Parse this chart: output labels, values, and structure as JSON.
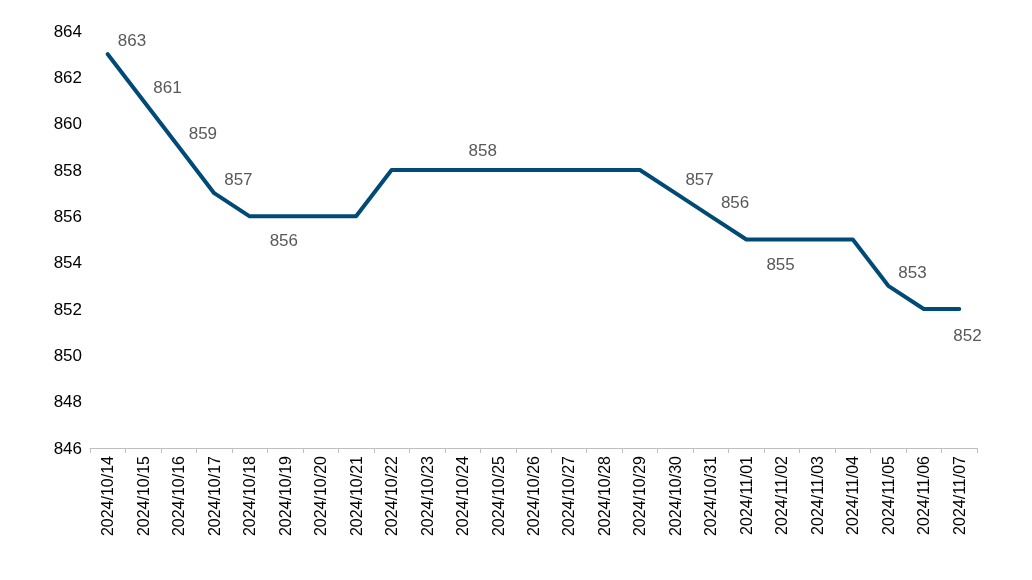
{
  "chart_data": {
    "type": "line",
    "categories": [
      "2024/10/14",
      "2024/10/15",
      "2024/10/16",
      "2024/10/17",
      "2024/10/18",
      "2024/10/19",
      "2024/10/20",
      "2024/10/21",
      "2024/10/22",
      "2024/10/23",
      "2024/10/24",
      "2024/10/25",
      "2024/10/26",
      "2024/10/27",
      "2024/10/28",
      "2024/10/29",
      "2024/10/30",
      "2024/10/31",
      "2024/11/01",
      "2024/11/02",
      "2024/11/03",
      "2024/11/04",
      "2024/11/05",
      "2024/11/06",
      "2024/11/07"
    ],
    "series": [
      {
        "color": "#004a76",
        "values": [
          863,
          861,
          859,
          857,
          856,
          856,
          856,
          856,
          858,
          858,
          858,
          858,
          858,
          858,
          858,
          858,
          857,
          856,
          855,
          855,
          855,
          855,
          853,
          852,
          852
        ],
        "value_labels": [
          "863",
          "861",
          "859",
          "857",
          "856",
          null,
          null,
          null,
          null,
          null,
          "858",
          null,
          null,
          null,
          null,
          null,
          "857",
          "856",
          "855",
          null,
          null,
          null,
          "853",
          null,
          "852"
        ]
      }
    ],
    "ylim": [
      846,
      864
    ],
    "yticks": [
      846,
      848,
      850,
      852,
      854,
      856,
      858,
      860,
      862,
      864
    ],
    "grid": false,
    "marker": "none",
    "line_style": "solid"
  }
}
